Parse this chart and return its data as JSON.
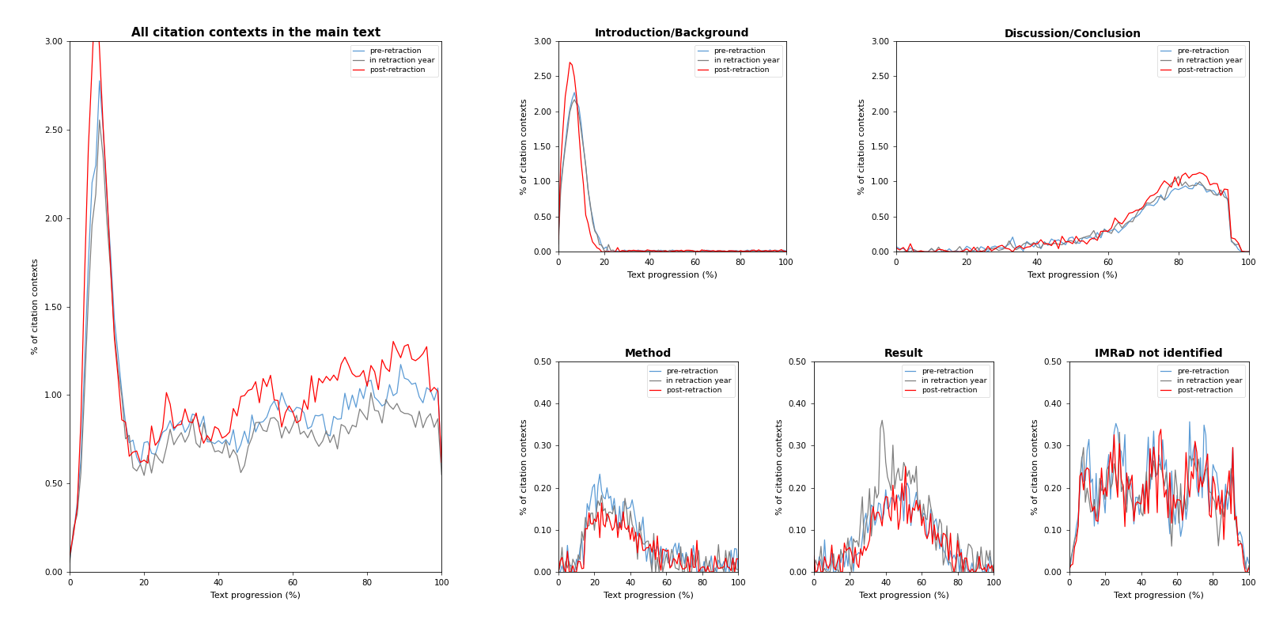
{
  "title_main": "All citation contexts in the main text",
  "title_intro": "Introduction/Background",
  "title_disc": "Discussion/Conclusion",
  "title_method": "Method",
  "title_result": "Result",
  "title_imrad": "IMRaD not identified",
  "xlabel": "Text progression (%)",
  "ylabel": "% of citation contexts",
  "legend_labels": [
    "pre-retraction",
    "in retraction year",
    "post-retraction"
  ],
  "colors": [
    "#5b9bd5",
    "#808080",
    "#FF0000"
  ],
  "line_width": 0.9,
  "seed": 42,
  "main_ylim": [
    0,
    3.0
  ],
  "main_yticks": [
    0.0,
    0.5,
    1.0,
    1.5,
    2.0,
    2.5,
    3.0
  ],
  "sub_ylim": [
    0,
    0.5
  ],
  "sub_yticks": [
    0.0,
    0.1,
    0.2,
    0.3,
    0.4,
    0.5
  ],
  "disc_ylim": [
    0,
    3.0
  ],
  "disc_yticks": [
    0.0,
    0.5,
    1.0,
    1.5,
    2.0,
    2.5,
    3.0
  ]
}
